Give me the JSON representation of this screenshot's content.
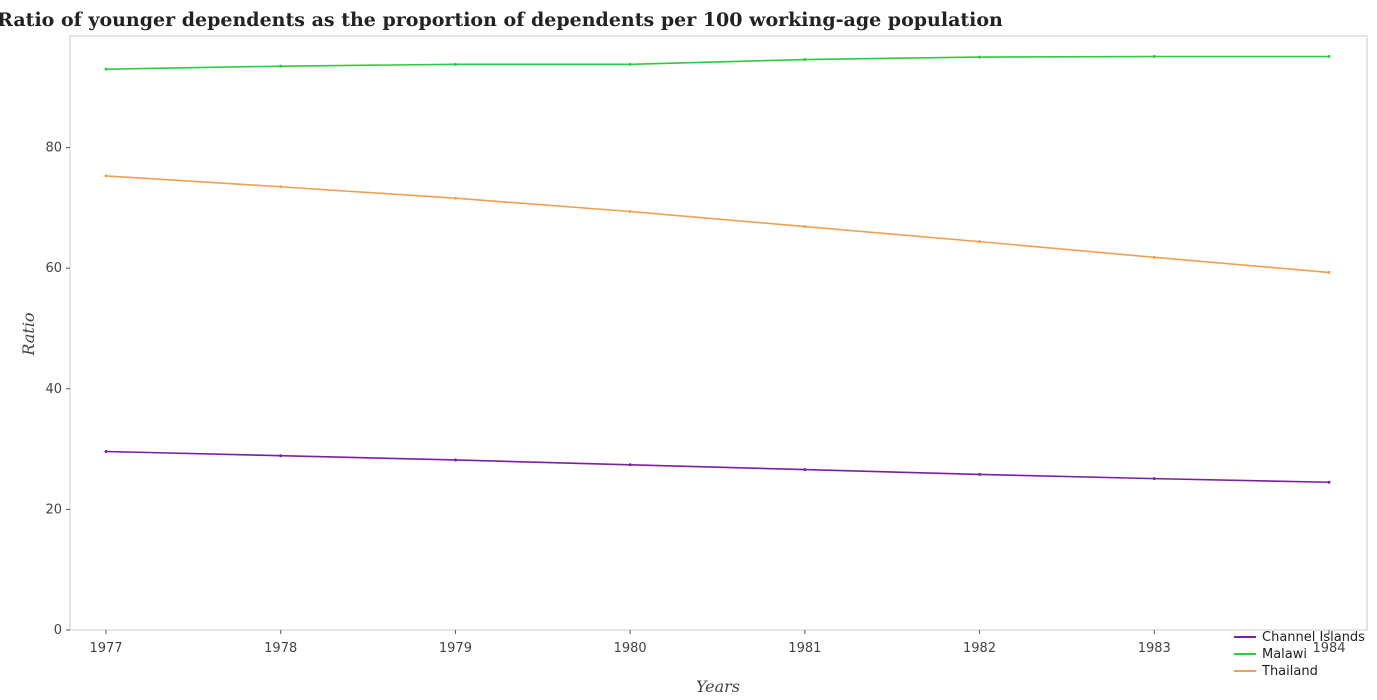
{
  "chart_data": {
    "type": "line",
    "title": "Ratio of younger dependents as the proportion of dependents per 100 working-age population",
    "xlabel": "Years",
    "ylabel": "Ratio",
    "categories": [
      "1977",
      "1978",
      "1979",
      "1980",
      "1981",
      "1982",
      "1983",
      "1984"
    ],
    "ylim": [
      0,
      98.5
    ],
    "yticks": [
      0,
      20,
      40,
      60,
      80
    ],
    "grid": false,
    "legend_position": "bottom-right",
    "series": [
      {
        "name": "Channel Islands",
        "color": "#7b1fa2",
        "values": [
          29.6,
          28.9,
          28.2,
          27.4,
          26.6,
          25.8,
          25.1,
          24.5
        ]
      },
      {
        "name": "Malawi",
        "color": "#2ecc40",
        "values": [
          93.0,
          93.5,
          93.8,
          93.8,
          94.6,
          95.0,
          95.1,
          95.1
        ]
      },
      {
        "name": "Thailand",
        "color": "#f0a050",
        "values": [
          75.3,
          73.5,
          71.6,
          69.4,
          66.9,
          64.4,
          61.8,
          59.3
        ]
      }
    ]
  }
}
